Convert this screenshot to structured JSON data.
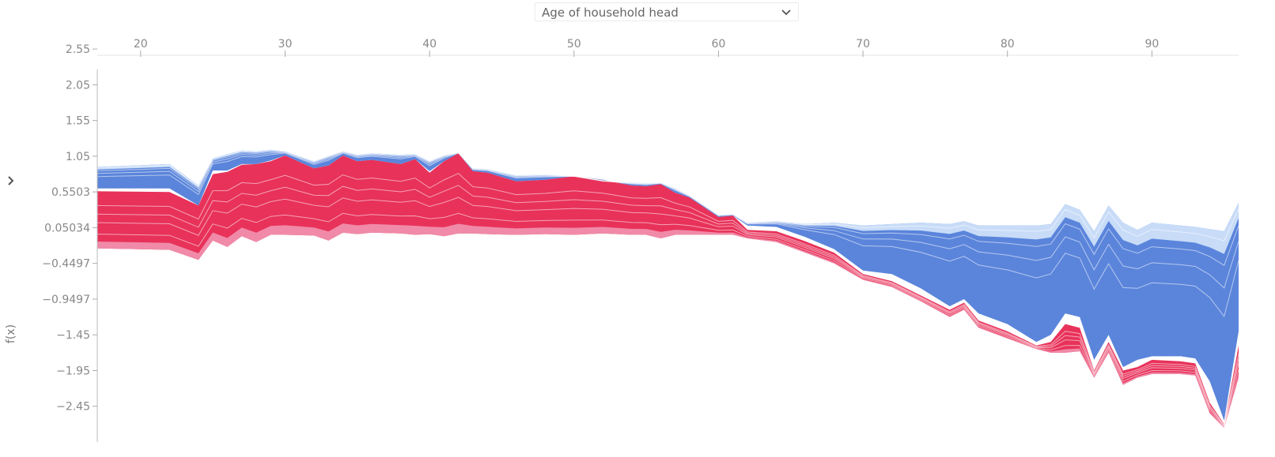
{
  "controls": {
    "feature_select": "Age of household head"
  },
  "icons": [
    "chevron-down-icon",
    "chevron-right-icon"
  ],
  "colors": {
    "positive": "#e8325a",
    "positive_light": "#f08aa8",
    "negative": "#5b85db",
    "negative_light": "#c8dcf8",
    "axis": "#999999"
  },
  "chart_data": {
    "type": "area",
    "xlabel": "Age of household head",
    "ylabel": "f(x)",
    "xlim": [
      17,
      96
    ],
    "ylim": [
      -2.95,
      2.85
    ],
    "x_ticks": [
      20,
      30,
      40,
      50,
      60,
      70,
      80,
      90
    ],
    "x_tick_labels": [
      "20",
      "30",
      "40",
      "50",
      "60",
      "70",
      "80",
      "90"
    ],
    "y_ticks": [
      2.55,
      2.05,
      1.55,
      1.05,
      0.5503,
      0.05034,
      -0.4497,
      -0.9497,
      -1.45,
      -1.95,
      -2.45
    ],
    "y_tick_labels": [
      "2.55",
      "2.05",
      "1.55",
      "1.05",
      "0.5503",
      "0.05034",
      "−0.4497",
      "−0.9497",
      "−1.45",
      "−1.95",
      "−2.45"
    ],
    "x": [
      17,
      22,
      24,
      25,
      26,
      27,
      28,
      29,
      30,
      32,
      33,
      34,
      35,
      36,
      38,
      39,
      40,
      41,
      42,
      43,
      44,
      46,
      48,
      50,
      52,
      54,
      55,
      56,
      57,
      58,
      60,
      61,
      62,
      64,
      66,
      68,
      70,
      72,
      74,
      76,
      77,
      78,
      80,
      82,
      83,
      84,
      85,
      86,
      87,
      88,
      89,
      90,
      92,
      93,
      94,
      95,
      96
    ],
    "series": [
      {
        "name": "upper",
        "values": [
          0.9,
          0.94,
          0.64,
          1.02,
          1.08,
          1.13,
          1.12,
          1.14,
          1.12,
          0.98,
          1.05,
          1.12,
          1.07,
          1.09,
          1.07,
          1.08,
          0.98,
          1.06,
          1.1,
          0.88,
          0.87,
          0.78,
          0.79,
          0.77,
          0.7,
          0.68,
          0.67,
          0.68,
          0.6,
          0.5,
          0.23,
          0.24,
          0.12,
          0.14,
          0.1,
          0.12,
          0.08,
          0.1,
          0.12,
          0.1,
          0.14,
          0.08,
          0.08,
          0.08,
          0.1,
          0.38,
          0.3,
          0.0,
          0.36,
          0.12,
          0.02,
          0.12,
          0.08,
          0.06,
          0.03,
          0.0,
          0.4
        ]
      },
      {
        "name": "positive_top",
        "values": [
          0.56,
          0.55,
          0.36,
          0.8,
          0.83,
          0.93,
          0.94,
          0.98,
          1.06,
          0.88,
          0.92,
          1.06,
          0.98,
          1.0,
          0.94,
          1.01,
          0.82,
          0.98,
          1.09,
          0.84,
          0.82,
          0.7,
          0.72,
          0.77,
          0.72,
          0.64,
          0.63,
          0.66,
          0.54,
          0.47,
          0.2,
          0.22,
          0.02,
          0.0,
          -0.14,
          -0.3,
          -0.6,
          -0.7,
          -0.9,
          -1.1,
          -1.0,
          -1.25,
          -1.4,
          -1.6,
          -1.55,
          -1.3,
          -1.35,
          -1.95,
          -1.55,
          -1.95,
          -1.9,
          -1.8,
          -1.82,
          -1.85,
          -2.4,
          -2.7,
          -1.6
        ]
      },
      {
        "name": "base",
        "values": [
          -0.24,
          -0.26,
          -0.4,
          -0.13,
          -0.22,
          -0.07,
          -0.15,
          -0.05,
          -0.05,
          -0.06,
          -0.13,
          -0.02,
          -0.04,
          -0.02,
          -0.03,
          -0.05,
          -0.04,
          -0.07,
          -0.03,
          -0.03,
          -0.04,
          -0.05,
          -0.04,
          -0.05,
          -0.03,
          -0.05,
          -0.05,
          -0.1,
          -0.05,
          -0.05,
          -0.05,
          -0.05,
          -0.1,
          -0.15,
          -0.3,
          -0.45,
          -0.68,
          -0.78,
          -0.98,
          -1.2,
          -1.1,
          -1.35,
          -1.5,
          -1.65,
          -1.7,
          -1.7,
          -1.68,
          -2.05,
          -1.7,
          -2.15,
          -2.05,
          -2.0,
          -2.0,
          -2.02,
          -2.55,
          -2.75,
          -2.05
        ]
      },
      {
        "name": "negative_bottom",
        "values": [
          0.6,
          0.6,
          0.36,
          0.85,
          0.85,
          0.94,
          0.94,
          0.99,
          1.06,
          0.88,
          0.92,
          1.06,
          0.98,
          1.0,
          0.94,
          1.01,
          0.84,
          0.98,
          1.09,
          0.84,
          0.82,
          0.7,
          0.72,
          0.77,
          0.72,
          0.64,
          0.63,
          0.66,
          0.54,
          0.47,
          0.2,
          0.22,
          0.08,
          0.06,
          -0.08,
          -0.25,
          -0.55,
          -0.6,
          -0.8,
          -1.05,
          -0.95,
          -1.15,
          -1.3,
          -1.55,
          -1.45,
          -1.15,
          -1.2,
          -1.8,
          -1.45,
          -1.9,
          -1.8,
          -1.75,
          -1.75,
          -1.78,
          -2.1,
          -2.65,
          -1.4
        ]
      }
    ]
  }
}
